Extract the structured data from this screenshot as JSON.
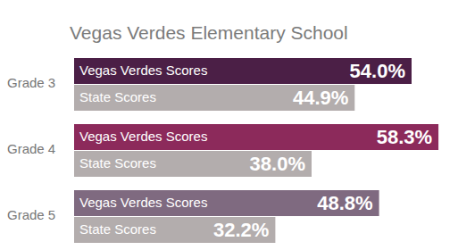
{
  "chart_data": {
    "type": "bar",
    "orientation": "horizontal",
    "title": "Vegas Verdes Elementary School",
    "categories": [
      "Grade 3",
      "Grade 4",
      "Grade 5"
    ],
    "series": [
      {
        "name": "Vegas Verdes Scores",
        "colors": [
          "#4b1f46",
          "#8c2a5b",
          "#7f6a80"
        ],
        "values": [
          54.0,
          58.3,
          48.8
        ],
        "value_labels": [
          "54.0%",
          "58.3%",
          "48.8%"
        ]
      },
      {
        "name": "State Scores",
        "color": "#b3adad",
        "values": [
          44.9,
          38.0,
          32.2
        ],
        "value_labels": [
          "44.9%",
          "38.0%",
          "32.2%"
        ]
      }
    ],
    "xlim": [
      0,
      60
    ],
    "tick_labels": false,
    "grid": false,
    "data_labels": true
  }
}
